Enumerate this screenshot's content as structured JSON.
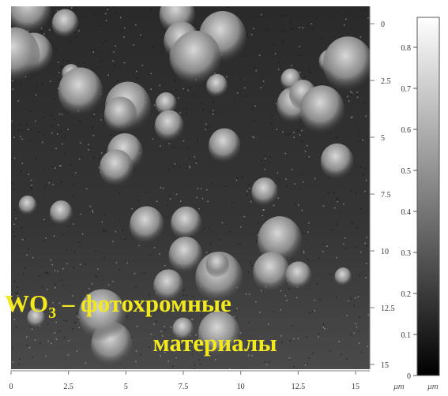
{
  "image": {
    "x_axis": {
      "ticks": [
        0,
        2.5,
        5,
        7.5,
        10,
        12.5,
        15
      ],
      "unit": "μm"
    },
    "y_axis": {
      "ticks": [
        0,
        2.5,
        5,
        7.5,
        10,
        12.5,
        15
      ]
    },
    "colorbar": {
      "ticks": [
        0,
        0.1,
        0.2,
        0.3,
        0.4,
        0.5,
        0.6,
        0.7,
        0.8
      ],
      "unit": "μm"
    },
    "caption": {
      "formula": "WO",
      "subscript": "3",
      "line1_rest": " – фотохромные",
      "line2": "материалы"
    }
  }
}
